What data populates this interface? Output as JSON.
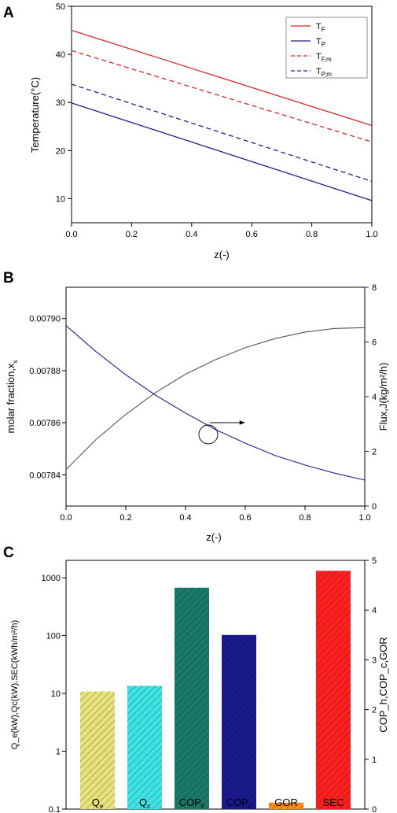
{
  "panels": [
    "A",
    "B",
    "C"
  ],
  "chart_data": [
    {
      "type": "line",
      "panel": "A",
      "xlabel": "z(-)",
      "ylabel": "Temperature(°C)",
      "xlim": [
        0,
        1
      ],
      "ylim": [
        5,
        50
      ],
      "xticks": [
        "0.0",
        "0.2",
        "0.4",
        "0.6",
        "0.8",
        "1.0"
      ],
      "yticks": [
        "10",
        "20",
        "30",
        "40",
        "50"
      ],
      "legend_position": "top-right",
      "series": [
        {
          "name": "T",
          "sub": "F",
          "color": "#d62728",
          "dash": "solid",
          "x": [
            0,
            1
          ],
          "y": [
            45.0,
            25.2
          ]
        },
        {
          "name": "T",
          "sub": "P",
          "color": "#1f1f8f",
          "dash": "solid",
          "x": [
            0,
            1
          ],
          "y": [
            29.9,
            9.6
          ]
        },
        {
          "name": "T",
          "sub": "F,m",
          "color": "#d62728",
          "dash": "dashed",
          "x": [
            0,
            1
          ],
          "y": [
            40.8,
            21.8
          ]
        },
        {
          "name": "T",
          "sub": "P,m",
          "color": "#1f1f8f",
          "dash": "dashed",
          "x": [
            0,
            1
          ],
          "y": [
            33.8,
            13.6
          ]
        }
      ]
    },
    {
      "type": "line",
      "panel": "B",
      "xlabel": "z(-)",
      "ylabel_left": "molar fraction,x",
      "ylabel_left_sub": "s",
      "ylabel_right": "Flux,J(kg/m²/h)",
      "xlim": [
        0,
        1
      ],
      "ylim_left": [
        0.007828,
        0.007912
      ],
      "ylim_right": [
        0,
        8
      ],
      "xticks": [
        "0.0",
        "0.2",
        "0.4",
        "0.6",
        "0.8",
        "1.0"
      ],
      "yticks_left": [
        "0.00784",
        "0.00786",
        "0.00788",
        "0.00790"
      ],
      "yticks_right": [
        "0",
        "2",
        "4",
        "6",
        "8"
      ],
      "annotation": "arrow from circled flux curve pointing to right axis",
      "series": [
        {
          "axis": "left",
          "color": "#555555",
          "x": [
            0,
            0.1,
            0.2,
            0.3,
            0.4,
            0.5,
            0.6,
            0.7,
            0.8,
            0.9,
            1.0
          ],
          "y": [
            0.007842,
            0.0078535,
            0.0078632,
            0.0078716,
            0.0078786,
            0.0078842,
            0.0078888,
            0.0078923,
            0.0078948,
            0.0078962,
            0.0078965
          ]
        },
        {
          "axis": "right",
          "color": "#1f1f8f",
          "x": [
            0,
            0.1,
            0.2,
            0.3,
            0.4,
            0.5,
            0.6,
            0.7,
            0.8,
            0.9,
            1.0
          ],
          "y": [
            6.6,
            5.65,
            4.8,
            4.05,
            3.4,
            2.8,
            2.3,
            1.85,
            1.5,
            1.2,
            0.95
          ]
        }
      ]
    },
    {
      "type": "bar",
      "panel": "C",
      "ylabel_left": "Q_e(kW),Qc(kW),SEC(kWh/m²/h)",
      "ylabel_right": "COP_h,COP_c,GOR",
      "yscale_left": "log",
      "ylim_left": [
        0.1,
        2000
      ],
      "ylim_right": [
        0,
        5
      ],
      "yticks_left": [
        "0.1",
        "1",
        "10",
        "100",
        "1000"
      ],
      "yticks_right": [
        "0",
        "1",
        "2",
        "3",
        "4",
        "5"
      ],
      "categories": [
        {
          "label": "Q",
          "sub": "e"
        },
        {
          "label": "Q",
          "sub": "c"
        },
        {
          "label": "COP",
          "sub": "h"
        },
        {
          "label": "COP",
          "sub": "c"
        },
        {
          "label": "GOR",
          "sub": ""
        },
        {
          "label": "SEC",
          "sub": ""
        }
      ],
      "values": [
        10.8,
        13.5,
        4.45,
        3.5,
        0.13,
        1320
      ],
      "axis": [
        "left",
        "left",
        "right",
        "right",
        "right",
        "left"
      ],
      "colors": [
        "#e8e27a",
        "#3fe3e3",
        "#1a7a6a",
        "#1a1a8f",
        "#ff8c1a",
        "#ff2020"
      ],
      "hatch": true
    }
  ]
}
